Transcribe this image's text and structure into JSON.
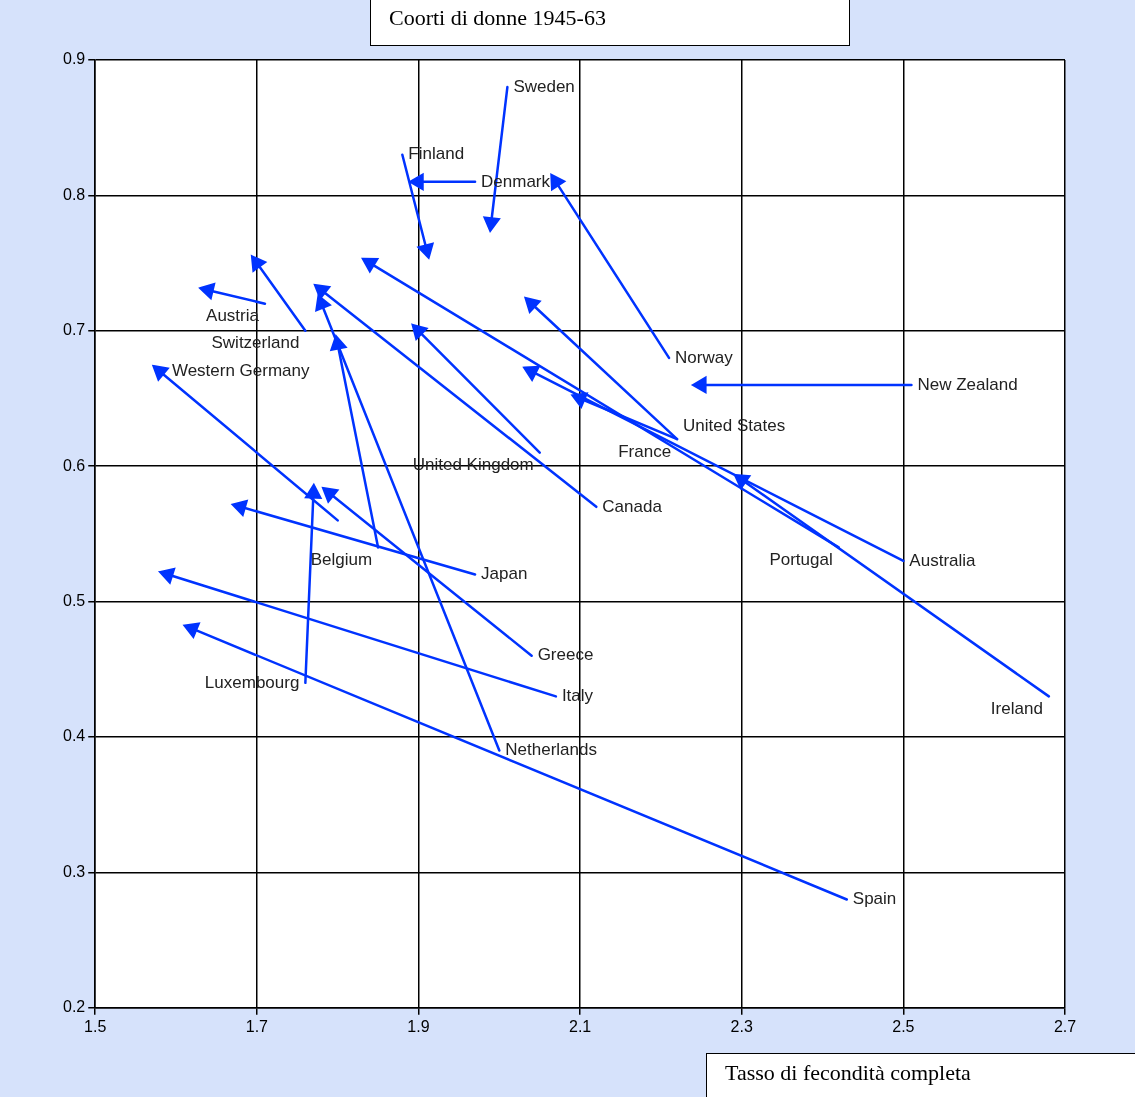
{
  "chart_data": {
    "type": "line",
    "title": "Coorti di donne 1945-63",
    "xlabel": "Tasso di fecondità completa",
    "xlim": [
      1.5,
      2.7
    ],
    "ylim": [
      0.2,
      0.9
    ],
    "xticks": [
      1.5,
      1.7,
      1.9,
      2.1,
      2.3,
      2.5,
      2.7
    ],
    "yticks": [
      0.2,
      0.3,
      0.4,
      0.5,
      0.6,
      0.7,
      0.8,
      0.9
    ],
    "grid": true,
    "legend": false,
    "marker": "triangle",
    "line_style": "solid",
    "series": [
      {
        "name": "Sweden",
        "color": "#0033ff",
        "x": [
          2.01,
          1.99
        ],
        "values": [
          0.88,
          0.78
        ]
      },
      {
        "name": "Finland",
        "color": "#0033ff",
        "x": [
          1.88,
          1.91
        ],
        "values": [
          0.83,
          0.76
        ]
      },
      {
        "name": "Denmark",
        "color": "#0033ff",
        "x": [
          1.97,
          1.9
        ],
        "values": [
          0.81,
          0.81
        ]
      },
      {
        "name": "Norway",
        "color": "#0033ff",
        "x": [
          2.21,
          2.07
        ],
        "values": [
          0.68,
          0.81
        ]
      },
      {
        "name": "Switzerland",
        "color": "#0033ff",
        "x": [
          1.76,
          1.7
        ],
        "values": [
          0.7,
          0.75
        ]
      },
      {
        "name": "Portugal",
        "color": "#0033ff",
        "x": [
          2.42,
          1.84
        ],
        "values": [
          0.54,
          0.75
        ]
      },
      {
        "name": "Austria",
        "color": "#0033ff",
        "x": [
          1.71,
          1.64
        ],
        "values": [
          0.72,
          0.73
        ]
      },
      {
        "name": "United States",
        "color": "#0033ff",
        "x": [
          2.22,
          2.04
        ],
        "values": [
          0.62,
          0.72
        ]
      },
      {
        "name": "New Zealand",
        "color": "#0033ff",
        "x": [
          2.51,
          2.25
        ],
        "values": [
          0.66,
          0.66
        ]
      },
      {
        "name": "Western Germany",
        "color": "#0033ff",
        "x": [
          1.8,
          1.58
        ],
        "values": [
          0.56,
          0.67
        ]
      },
      {
        "name": "France",
        "color": "#0033ff",
        "x": [
          2.22,
          2.1
        ],
        "values": [
          0.62,
          0.65
        ]
      },
      {
        "name": "United Kingdom",
        "color": "#0033ff",
        "x": [
          2.05,
          1.9
        ],
        "values": [
          0.61,
          0.7
        ]
      },
      {
        "name": "Canada",
        "color": "#0033ff",
        "x": [
          2.12,
          1.78
        ],
        "values": [
          0.57,
          0.73
        ]
      },
      {
        "name": "Australia",
        "color": "#0033ff",
        "x": [
          2.5,
          2.04
        ],
        "values": [
          0.53,
          0.67
        ]
      },
      {
        "name": "Belgium",
        "color": "#0033ff",
        "x": [
          1.85,
          1.8
        ],
        "values": [
          0.54,
          0.69
        ]
      },
      {
        "name": "Japan",
        "color": "#0033ff",
        "x": [
          1.97,
          1.68
        ],
        "values": [
          0.52,
          0.57
        ]
      },
      {
        "name": "Greece",
        "color": "#0033ff",
        "x": [
          2.04,
          1.79
        ],
        "values": [
          0.46,
          0.58
        ]
      },
      {
        "name": "Italy",
        "color": "#0033ff",
        "x": [
          2.07,
          1.59
        ],
        "values": [
          0.43,
          0.52
        ]
      },
      {
        "name": "Luxembourg",
        "color": "#0033ff",
        "x": [
          1.76,
          1.77
        ],
        "values": [
          0.44,
          0.58
        ]
      },
      {
        "name": "Ireland",
        "color": "#0033ff",
        "x": [
          2.68,
          2.3
        ],
        "values": [
          0.43,
          0.59
        ]
      },
      {
        "name": "Netherlands",
        "color": "#0033ff",
        "x": [
          2.0,
          1.78
        ],
        "values": [
          0.39,
          0.72
        ]
      },
      {
        "name": "Spain",
        "color": "#0033ff",
        "x": [
          2.43,
          1.62
        ],
        "values": [
          0.28,
          0.48
        ]
      }
    ]
  }
}
